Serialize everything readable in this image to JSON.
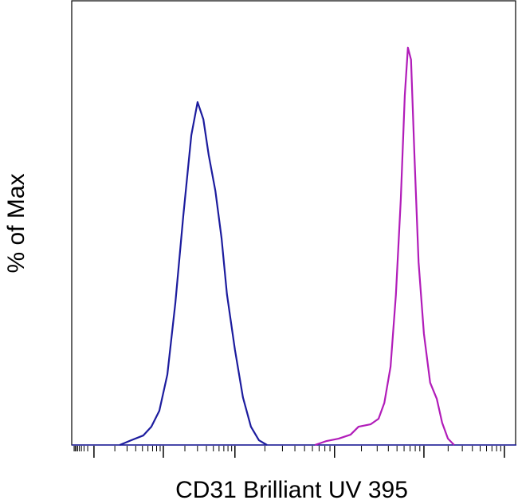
{
  "chart_data": {
    "type": "line",
    "x_label": "CD31 Brilliant UV 395",
    "y_label": "% of Max",
    "xlim": [
      0,
      100
    ],
    "ylim": [
      0,
      112
    ],
    "xticks": [
      5,
      20.6,
      36.7,
      59.1,
      79.2,
      97.3
    ],
    "series": [
      {
        "color": "#1c1c9e",
        "x": [
          10.8,
          13.4,
          16.1,
          17.9,
          19.7,
          21.5,
          23.3,
          25.1,
          26.9,
          28.3,
          29.6,
          30.8,
          32.3,
          33.7,
          34.9,
          36.7,
          38.5,
          40.3,
          42.1,
          43.9
        ],
        "values": [
          0,
          1.2,
          2.4,
          4.6,
          8.6,
          17.7,
          35.7,
          57.8,
          78,
          86.3,
          82,
          73,
          64,
          52,
          38,
          24,
          12,
          4.6,
          1.2,
          0
        ]
      },
      {
        "color": "#b11cb9",
        "x": [
          54.7,
          57.3,
          60.0,
          62.7,
          64.5,
          67.2,
          69.0,
          70.3,
          71.7,
          72.9,
          74.0,
          74.9,
          75.6,
          76.3,
          77.1,
          78.0,
          79.2,
          80.6,
          82.1,
          83.3,
          84.6,
          86.0
        ],
        "values": [
          0,
          1,
          1.6,
          2.6,
          4.6,
          5.2,
          6.6,
          10.6,
          19.7,
          37.8,
          61.8,
          88,
          100,
          97,
          72,
          46,
          28,
          15.7,
          11.6,
          5.6,
          1.6,
          0
        ]
      }
    ]
  }
}
